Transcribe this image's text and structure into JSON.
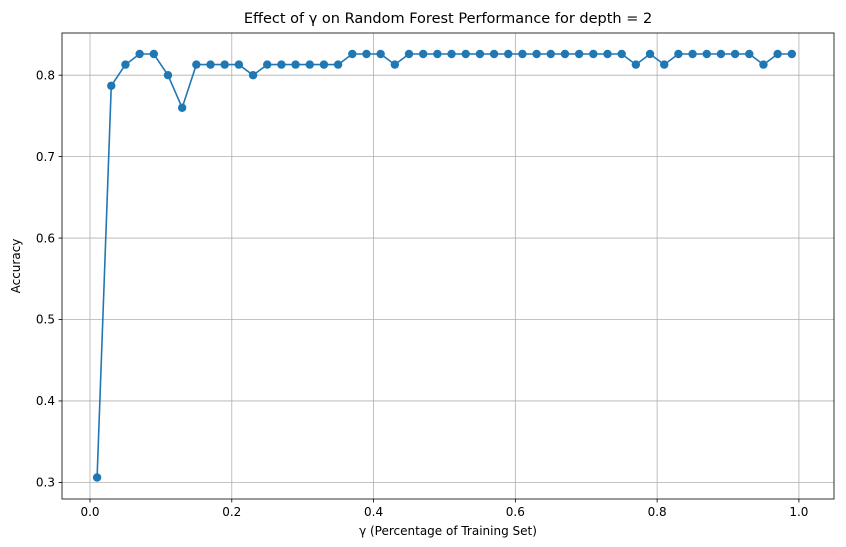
{
  "chart_data": {
    "type": "line",
    "title": "Effect of γ on Random Forest Performance for depth = 2",
    "xlabel": "γ (Percentage of Training Set)",
    "ylabel": "Accuracy",
    "xlim": [
      -0.0395,
      1.0495
    ],
    "ylim": [
      0.2796,
      0.8518
    ],
    "xticks": [
      0.0,
      0.2,
      0.4,
      0.6,
      0.8,
      1.0
    ],
    "xtick_labels": [
      "0.0",
      "0.2",
      "0.4",
      "0.6",
      "0.8",
      "1.0"
    ],
    "yticks": [
      0.3,
      0.4,
      0.5,
      0.6,
      0.7,
      0.8
    ],
    "ytick_labels": [
      "0.3",
      "0.4",
      "0.5",
      "0.6",
      "0.7",
      "0.8"
    ],
    "grid": true,
    "marker": "circle",
    "color": "#1f77b4",
    "series": [
      {
        "x": [
          0.01,
          0.03,
          0.05,
          0.07,
          0.09,
          0.11,
          0.13,
          0.15,
          0.17,
          0.19,
          0.21,
          0.23,
          0.25,
          0.27,
          0.29,
          0.31,
          0.33,
          0.35,
          0.37,
          0.39,
          0.41,
          0.43,
          0.45,
          0.47,
          0.49,
          0.51,
          0.53,
          0.55,
          0.57,
          0.59,
          0.61,
          0.63,
          0.65,
          0.67,
          0.69,
          0.71,
          0.73,
          0.75,
          0.77,
          0.79,
          0.81,
          0.83,
          0.85,
          0.87,
          0.89,
          0.91,
          0.93,
          0.95,
          0.97,
          0.99
        ],
        "y": [
          0.306,
          0.787,
          0.813,
          0.826,
          0.826,
          0.8,
          0.76,
          0.813,
          0.813,
          0.813,
          0.813,
          0.8,
          0.813,
          0.813,
          0.813,
          0.813,
          0.813,
          0.813,
          0.826,
          0.826,
          0.826,
          0.813,
          0.826,
          0.826,
          0.826,
          0.826,
          0.826,
          0.826,
          0.826,
          0.826,
          0.826,
          0.826,
          0.826,
          0.826,
          0.826,
          0.826,
          0.826,
          0.826,
          0.813,
          0.826,
          0.813,
          0.826,
          0.826,
          0.826,
          0.826,
          0.826,
          0.826,
          0.813,
          0.826,
          0.826
        ]
      }
    ]
  }
}
